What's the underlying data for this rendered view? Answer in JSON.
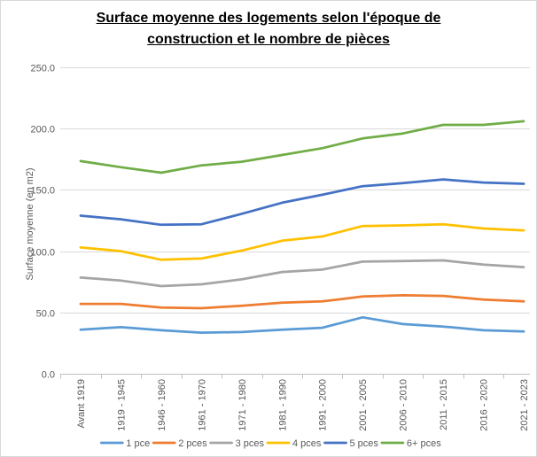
{
  "chart_data": {
    "type": "line",
    "title": "Surface moyenne des logements selon l'époque de construction et le nombre de pièces",
    "ylabel": "Surface moyenne (en m2)",
    "ylim": [
      0,
      250
    ],
    "yticks": [
      0,
      50,
      100,
      150,
      200,
      250
    ],
    "ytick_labels": [
      "0.0",
      "50.0",
      "100.0",
      "150.0",
      "200.0",
      "250.0"
    ],
    "grid": true,
    "legend_position": "bottom",
    "categories": [
      "Avant 1919",
      "1919 - 1945",
      "1946 - 1960",
      "1961 - 1970",
      "1971 - 1980",
      "1981 - 1990",
      "1991 - 2000",
      "2001 - 2005",
      "2006 - 2010",
      "2011 - 2015",
      "2016 - 2020",
      "2021 - 2023"
    ],
    "series": [
      {
        "name": "1 pce",
        "color": "#5B9BD5",
        "values": [
          36,
          38,
          35.5,
          33.5,
          34,
          36,
          37.5,
          46,
          40.5,
          38.5,
          35.5,
          34.5
        ]
      },
      {
        "name": "2 pces",
        "color": "#ED7D31",
        "values": [
          57,
          57,
          54,
          53.5,
          55.5,
          58,
          59,
          63,
          64,
          63.5,
          60.5,
          59
        ]
      },
      {
        "name": "3 pces",
        "color": "#A5A5A5",
        "values": [
          78.5,
          76,
          71.5,
          73,
          77,
          83,
          85,
          91.5,
          92,
          92.5,
          89,
          87
        ]
      },
      {
        "name": "4 pces",
        "color": "#FFC000",
        "values": [
          103,
          100,
          93,
          94,
          100.5,
          108.5,
          112,
          120.5,
          121,
          122,
          118.5,
          117
        ]
      },
      {
        "name": "5 pces",
        "color": "#4472C4",
        "values": [
          129,
          126,
          121.5,
          122,
          130.5,
          139.5,
          146,
          153,
          155.5,
          158.5,
          156,
          155
        ]
      },
      {
        "name": "6+ pces",
        "color": "#70AD47",
        "values": [
          173.5,
          168.5,
          164,
          170,
          173,
          178.5,
          184,
          192,
          196,
          203,
          203,
          206
        ]
      }
    ]
  }
}
